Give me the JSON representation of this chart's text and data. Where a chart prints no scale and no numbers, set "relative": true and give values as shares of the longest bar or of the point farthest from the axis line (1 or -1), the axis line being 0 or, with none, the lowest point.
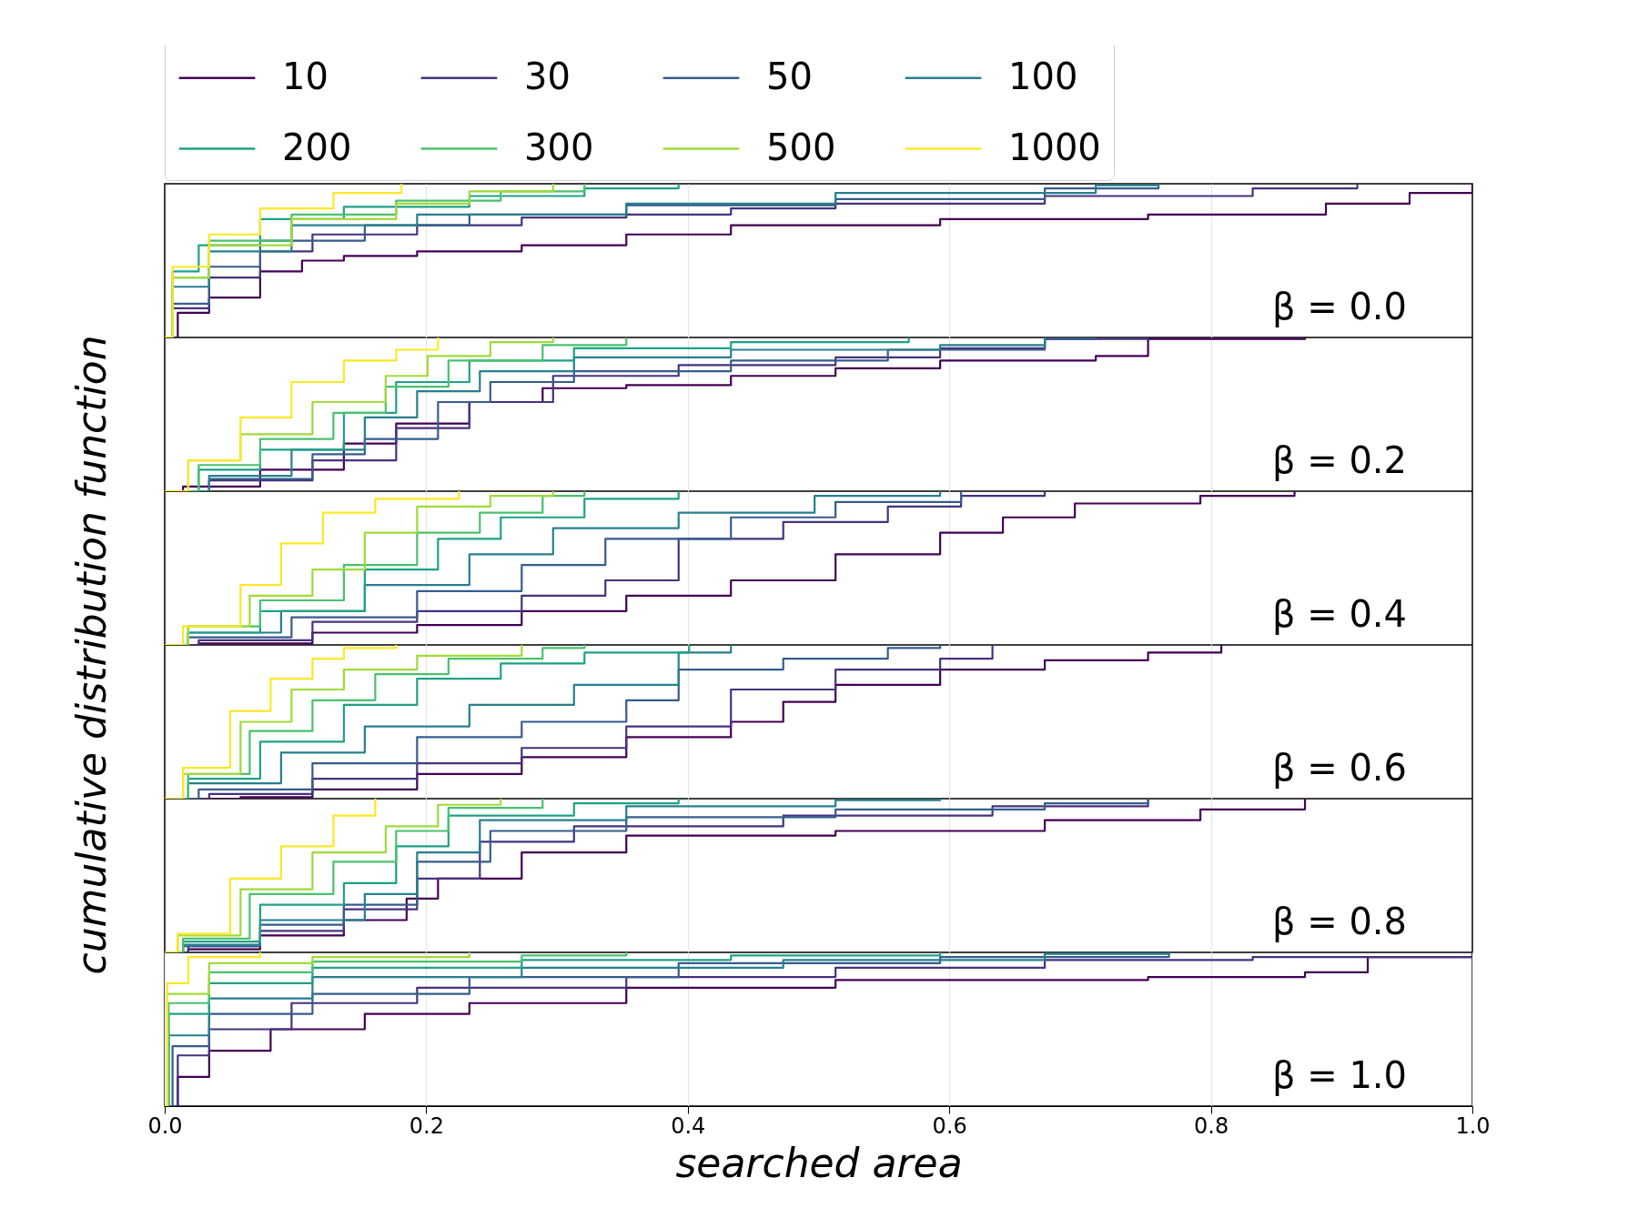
{
  "chart_data": [
    {
      "type": "step",
      "relative": true,
      "ylabel": "cumulative distribution function",
      "legend": "top",
      "grid": "x",
      "tick_labels": false,
      "xlim": [
        0,
        1
      ],
      "xticks": [
        0.2,
        0.4,
        0.6,
        0.8
      ],
      "annotations": [
        "β = 0.0"
      ],
      "series": [
        {
          "name": "10",
          "color": "#440154",
          "x": [
            0,
            0.01,
            0.034,
            0.073,
            0.105,
            0.137,
            0.193,
            0.273,
            0.353,
            0.433,
            0.593,
            0.752,
            0.888,
            0.952,
            1.0
          ],
          "values": [
            0,
            0.16,
            0.26,
            0.43,
            0.5,
            0.53,
            0.56,
            0.6,
            0.67,
            0.73,
            0.77,
            0.8,
            0.87,
            0.94,
            1
          ]
        },
        {
          "name": "30",
          "color": "#46327e",
          "x": [
            0,
            0.006,
            0.034,
            0.073,
            0.113,
            0.193,
            0.273,
            0.353,
            0.433,
            0.513,
            0.673,
            0.832,
            0.912
          ],
          "values": [
            0,
            0.19,
            0.39,
            0.56,
            0.67,
            0.73,
            0.78,
            0.8,
            0.84,
            0.87,
            0.92,
            0.97,
            1
          ]
        },
        {
          "name": "50",
          "color": "#365c8d",
          "x": [
            0,
            0.006,
            0.034,
            0.073,
            0.153,
            0.233,
            0.353,
            0.513,
            0.673,
            0.76
          ],
          "values": [
            0,
            0.22,
            0.46,
            0.63,
            0.73,
            0.8,
            0.86,
            0.9,
            0.97,
            1
          ]
        },
        {
          "name": "100",
          "color": "#277f8e",
          "x": [
            0,
            0.006,
            0.034,
            0.097,
            0.193,
            0.353,
            0.513,
            0.712,
            0.76
          ],
          "values": [
            0,
            0.33,
            0.56,
            0.73,
            0.8,
            0.87,
            0.94,
            0.99,
            1
          ]
        },
        {
          "name": "200",
          "color": "#1fa187",
          "x": [
            0,
            0.006,
            0.026,
            0.073,
            0.137,
            0.233,
            0.321,
            0.393
          ],
          "values": [
            0,
            0.43,
            0.6,
            0.77,
            0.85,
            0.92,
            0.97,
            1
          ]
        },
        {
          "name": "300",
          "color": "#4ac16d",
          "x": [
            0,
            0.006,
            0.034,
            0.097,
            0.177,
            0.257,
            0.321
          ],
          "values": [
            0,
            0.39,
            0.63,
            0.8,
            0.89,
            0.95,
            1
          ]
        },
        {
          "name": "500",
          "color": "#a0da39",
          "x": [
            0,
            0.006,
            0.034,
            0.097,
            0.177,
            0.233,
            0.297
          ],
          "values": [
            0,
            0.39,
            0.6,
            0.77,
            0.87,
            0.95,
            1
          ]
        },
        {
          "name": "1000",
          "color": "#fde725",
          "x": [
            0,
            0.006,
            0.034,
            0.073,
            0.129,
            0.181
          ],
          "values": [
            0,
            0.46,
            0.67,
            0.84,
            0.94,
            1
          ]
        }
      ]
    },
    {
      "type": "step",
      "relative": true,
      "grid": "x",
      "tick_labels": false,
      "xlim": [
        0,
        1
      ],
      "xticks": [
        0.2,
        0.4,
        0.6,
        0.8
      ],
      "annotations": [
        "β = 0.2"
      ],
      "series": [
        {
          "color": "#440154",
          "x": [
            0,
            0.014,
            0.073,
            0.137,
            0.177,
            0.233,
            0.289,
            0.353,
            0.433,
            0.513,
            0.593,
            0.712,
            0.752,
            0.872
          ],
          "values": [
            0,
            0.03,
            0.14,
            0.31,
            0.44,
            0.58,
            0.67,
            0.69,
            0.75,
            0.8,
            0.85,
            0.88,
            0.99,
            1
          ]
        },
        {
          "color": "#46327e",
          "x": [
            0,
            0.034,
            0.113,
            0.177,
            0.233,
            0.297,
            0.393,
            0.513,
            0.593,
            0.673,
            0.752
          ],
          "values": [
            0,
            0.07,
            0.2,
            0.41,
            0.58,
            0.75,
            0.82,
            0.87,
            0.93,
            0.99,
            1
          ]
        },
        {
          "color": "#365c8d",
          "x": [
            0,
            0.034,
            0.113,
            0.153,
            0.209,
            0.249,
            0.313,
            0.433,
            0.553,
            0.673,
            0.712
          ],
          "values": [
            0,
            0.08,
            0.24,
            0.34,
            0.58,
            0.71,
            0.78,
            0.85,
            0.92,
            0.99,
            1
          ]
        },
        {
          "color": "#277f8e",
          "x": [
            0,
            0.034,
            0.097,
            0.153,
            0.193,
            0.241,
            0.313,
            0.433,
            0.593,
            0.673
          ],
          "values": [
            0,
            0.1,
            0.27,
            0.48,
            0.65,
            0.78,
            0.87,
            0.92,
            0.95,
            1
          ]
        },
        {
          "color": "#1fa187",
          "x": [
            0,
            0.026,
            0.073,
            0.137,
            0.177,
            0.233,
            0.313,
            0.433,
            0.569
          ],
          "values": [
            0,
            0.14,
            0.27,
            0.51,
            0.71,
            0.85,
            0.93,
            0.97,
            1
          ]
        },
        {
          "color": "#4ac16d",
          "x": [
            0,
            0.026,
            0.073,
            0.129,
            0.169,
            0.217,
            0.289,
            0.353
          ],
          "values": [
            0,
            0.17,
            0.34,
            0.51,
            0.68,
            0.85,
            0.95,
            1
          ]
        },
        {
          "color": "#a0da39",
          "x": [
            0,
            0.018,
            0.058,
            0.113,
            0.169,
            0.201,
            0.249,
            0.297
          ],
          "values": [
            0,
            0.2,
            0.37,
            0.58,
            0.75,
            0.88,
            0.97,
            1
          ]
        },
        {
          "color": "#fde725",
          "x": [
            0,
            0.018,
            0.058,
            0.097,
            0.137,
            0.177,
            0.209
          ],
          "values": [
            0,
            0.2,
            0.48,
            0.71,
            0.85,
            0.92,
            1
          ]
        }
      ]
    },
    {
      "type": "step",
      "relative": true,
      "grid": "x",
      "tick_labels": false,
      "xlim": [
        0,
        1
      ],
      "xticks": [
        0.2,
        0.4,
        0.6,
        0.8
      ],
      "annotations": [
        "β = 0.4"
      ],
      "series": [
        {
          "color": "#440154",
          "x": [
            0,
            0.026,
            0.113,
            0.193,
            0.273,
            0.353,
            0.433,
            0.513,
            0.593,
            0.641,
            0.696,
            0.792,
            0.864
          ],
          "values": [
            0,
            0.01,
            0.08,
            0.13,
            0.22,
            0.32,
            0.42,
            0.59,
            0.73,
            0.83,
            0.92,
            0.97,
            1
          ]
        },
        {
          "color": "#46327e",
          "x": [
            0,
            0.026,
            0.113,
            0.193,
            0.273,
            0.337,
            0.393,
            0.473,
            0.553,
            0.609,
            0.673
          ],
          "values": [
            0,
            0.03,
            0.15,
            0.22,
            0.32,
            0.42,
            0.69,
            0.8,
            0.9,
            0.97,
            1
          ]
        },
        {
          "color": "#365c8d",
          "x": [
            0,
            0.018,
            0.097,
            0.193,
            0.273,
            0.337,
            0.433,
            0.513,
            0.609
          ],
          "values": [
            0,
            0.05,
            0.18,
            0.35,
            0.52,
            0.69,
            0.83,
            0.93,
            1
          ]
        },
        {
          "color": "#277f8e",
          "x": [
            0,
            0.018,
            0.089,
            0.153,
            0.233,
            0.297,
            0.393,
            0.497,
            0.593
          ],
          "values": [
            0,
            0.08,
            0.22,
            0.39,
            0.59,
            0.76,
            0.86,
            0.97,
            1
          ]
        },
        {
          "color": "#1fa187",
          "x": [
            0,
            0.018,
            0.073,
            0.153,
            0.209,
            0.257,
            0.321,
            0.393
          ],
          "values": [
            0,
            0.08,
            0.22,
            0.49,
            0.69,
            0.83,
            0.95,
            1
          ]
        },
        {
          "color": "#4ac16d",
          "x": [
            0,
            0.018,
            0.073,
            0.137,
            0.193,
            0.241,
            0.289,
            0.321
          ],
          "values": [
            0,
            0.12,
            0.29,
            0.52,
            0.73,
            0.86,
            0.97,
            1
          ]
        },
        {
          "color": "#a0da39",
          "x": [
            0,
            0.018,
            0.065,
            0.113,
            0.153,
            0.193,
            0.249,
            0.297
          ],
          "values": [
            0,
            0.12,
            0.32,
            0.49,
            0.73,
            0.9,
            0.97,
            1
          ]
        },
        {
          "color": "#fde725",
          "x": [
            0,
            0.014,
            0.058,
            0.089,
            0.121,
            0.161,
            0.225
          ],
          "values": [
            0,
            0.12,
            0.39,
            0.66,
            0.86,
            0.95,
            1
          ]
        }
      ]
    },
    {
      "type": "step",
      "relative": true,
      "grid": "x",
      "tick_labels": false,
      "xlim": [
        0,
        1
      ],
      "xticks": [
        0.2,
        0.4,
        0.6,
        0.8
      ],
      "annotations": [
        "β = 0.6"
      ],
      "series": [
        {
          "color": "#440154",
          "x": [
            0,
            0.058,
            0.113,
            0.193,
            0.273,
            0.353,
            0.433,
            0.473,
            0.513,
            0.593,
            0.673,
            0.752,
            0.808
          ],
          "values": [
            0,
            0.01,
            0.06,
            0.16,
            0.27,
            0.4,
            0.5,
            0.63,
            0.74,
            0.84,
            0.9,
            0.95,
            1
          ]
        },
        {
          "color": "#46327e",
          "x": [
            0,
            0.034,
            0.113,
            0.193,
            0.273,
            0.353,
            0.433,
            0.513,
            0.593,
            0.633
          ],
          "values": [
            0,
            0.03,
            0.13,
            0.23,
            0.33,
            0.47,
            0.71,
            0.84,
            0.91,
            1
          ]
        },
        {
          "color": "#365c8d",
          "x": [
            0,
            0.026,
            0.113,
            0.193,
            0.273,
            0.353,
            0.393,
            0.473,
            0.553,
            0.593
          ],
          "values": [
            0,
            0.06,
            0.23,
            0.4,
            0.5,
            0.64,
            0.84,
            0.91,
            0.98,
            1
          ]
        },
        {
          "color": "#277f8e",
          "x": [
            0,
            0.018,
            0.089,
            0.153,
            0.233,
            0.313,
            0.393,
            0.433
          ],
          "values": [
            0,
            0.1,
            0.3,
            0.47,
            0.61,
            0.74,
            0.95,
            1
          ]
        },
        {
          "color": "#1fa187",
          "x": [
            0,
            0.018,
            0.073,
            0.137,
            0.193,
            0.257,
            0.321,
            0.401
          ],
          "values": [
            0,
            0.13,
            0.37,
            0.61,
            0.78,
            0.88,
            0.95,
            1
          ]
        },
        {
          "color": "#4ac16d",
          "x": [
            0,
            0.018,
            0.065,
            0.113,
            0.161,
            0.217,
            0.289,
            0.321
          ],
          "values": [
            0,
            0.16,
            0.44,
            0.64,
            0.81,
            0.91,
            0.98,
            1
          ]
        },
        {
          "color": "#a0da39",
          "x": [
            0,
            0.014,
            0.058,
            0.097,
            0.137,
            0.193,
            0.273
          ],
          "values": [
            0,
            0.16,
            0.5,
            0.71,
            0.84,
            0.93,
            1
          ]
        },
        {
          "color": "#fde725",
          "x": [
            0,
            0.014,
            0.05,
            0.081,
            0.113,
            0.137,
            0.177
          ],
          "values": [
            0,
            0.2,
            0.57,
            0.78,
            0.91,
            0.98,
            1
          ]
        }
      ]
    },
    {
      "type": "step",
      "relative": true,
      "grid": "x",
      "tick_labels": false,
      "xlim": [
        0,
        1
      ],
      "xticks": [
        0.2,
        0.4,
        0.6,
        0.8
      ],
      "annotations": [
        "β = 0.8"
      ],
      "series": [
        {
          "color": "#440154",
          "x": [
            0,
            0.018,
            0.073,
            0.137,
            0.185,
            0.209,
            0.273,
            0.353,
            0.513,
            0.673,
            0.792,
            0.872
          ],
          "values": [
            0,
            0.02,
            0.11,
            0.21,
            0.35,
            0.48,
            0.65,
            0.76,
            0.79,
            0.86,
            0.93,
            1
          ]
        },
        {
          "color": "#46327e",
          "x": [
            0,
            0.018,
            0.073,
            0.137,
            0.193,
            0.241,
            0.313,
            0.473,
            0.633,
            0.752
          ],
          "values": [
            0,
            0.04,
            0.14,
            0.28,
            0.48,
            0.72,
            0.82,
            0.89,
            0.95,
            1
          ]
        },
        {
          "color": "#365c8d",
          "x": [
            0,
            0.014,
            0.073,
            0.137,
            0.193,
            0.249,
            0.353,
            0.513,
            0.673,
            0.752
          ],
          "values": [
            0,
            0.04,
            0.18,
            0.31,
            0.59,
            0.79,
            0.88,
            0.93,
            0.97,
            1
          ]
        },
        {
          "color": "#277f8e",
          "x": [
            0,
            0.014,
            0.073,
            0.153,
            0.193,
            0.241,
            0.353,
            0.513,
            0.593
          ],
          "values": [
            0,
            0.05,
            0.21,
            0.38,
            0.65,
            0.86,
            0.95,
            0.99,
            1
          ]
        },
        {
          "color": "#1fa187",
          "x": [
            0,
            0.014,
            0.073,
            0.137,
            0.177,
            0.217,
            0.313,
            0.393
          ],
          "values": [
            0,
            0.07,
            0.31,
            0.45,
            0.69,
            0.89,
            0.97,
            1
          ]
        },
        {
          "color": "#4ac16d",
          "x": [
            0,
            0.014,
            0.065,
            0.129,
            0.177,
            0.217,
            0.289
          ],
          "values": [
            0,
            0.09,
            0.38,
            0.59,
            0.79,
            0.94,
            1
          ]
        },
        {
          "color": "#a0da39",
          "x": [
            0,
            0.01,
            0.058,
            0.113,
            0.169,
            0.209,
            0.257
          ],
          "values": [
            0,
            0.11,
            0.41,
            0.65,
            0.82,
            0.96,
            1
          ]
        },
        {
          "color": "#fde725",
          "x": [
            0,
            0.01,
            0.05,
            0.089,
            0.129,
            0.161
          ],
          "values": [
            0,
            0.12,
            0.48,
            0.69,
            0.89,
            1
          ]
        }
      ]
    },
    {
      "type": "step",
      "relative": true,
      "xlabel": "searched area",
      "grid": "x",
      "tick_labels": "x",
      "xlim": [
        0,
        1
      ],
      "xticks": [
        {
          "value": 0,
          "label": "0.0"
        },
        0.2,
        0.4,
        0.6,
        0.8,
        {
          "value": 1,
          "label": "1.0"
        }
      ],
      "annotations": [
        "β = 1.0"
      ],
      "series": [
        {
          "color": "#440154",
          "x": [
            0,
            0.01,
            0.034,
            0.081,
            0.153,
            0.233,
            0.353,
            0.513,
            0.752,
            0.872,
            0.92,
            1.0
          ],
          "values": [
            0,
            0.19,
            0.36,
            0.5,
            0.6,
            0.67,
            0.77,
            0.82,
            0.84,
            0.87,
            0.97,
            1
          ]
        },
        {
          "color": "#46327e",
          "x": [
            0,
            0.01,
            0.034,
            0.097,
            0.193,
            0.353,
            0.513,
            0.673,
            0.832,
            1.0
          ],
          "values": [
            0,
            0.33,
            0.5,
            0.67,
            0.77,
            0.84,
            0.9,
            0.95,
            0.97,
            1
          ]
        },
        {
          "color": "#365c8d",
          "x": [
            0,
            0.006,
            0.034,
            0.113,
            0.233,
            0.393,
            0.593,
            0.768
          ],
          "values": [
            0,
            0.39,
            0.6,
            0.73,
            0.84,
            0.93,
            0.97,
            1
          ]
        },
        {
          "color": "#277f8e",
          "x": [
            0,
            0.003,
            0.034,
            0.113,
            0.273,
            0.473,
            0.673,
            0.768
          ],
          "values": [
            0,
            0.46,
            0.7,
            0.84,
            0.9,
            0.95,
            0.99,
            1
          ]
        },
        {
          "color": "#1fa187",
          "x": [
            0,
            0.003,
            0.034,
            0.113,
            0.273,
            0.433,
            0.593
          ],
          "values": [
            0,
            0.6,
            0.8,
            0.9,
            0.95,
            0.98,
            1
          ]
        },
        {
          "color": "#4ac16d",
          "x": [
            0,
            0.003,
            0.034,
            0.113,
            0.273,
            0.353
          ],
          "values": [
            0,
            0.67,
            0.87,
            0.94,
            0.98,
            1
          ]
        },
        {
          "color": "#a0da39",
          "x": [
            0,
            0.002,
            0.034,
            0.113,
            0.233
          ],
          "values": [
            0,
            0.73,
            0.93,
            0.97,
            1
          ]
        },
        {
          "color": "#fde725",
          "x": [
            0,
            0.002,
            0.018,
            0.073
          ],
          "values": [
            0,
            0.8,
            0.97,
            1
          ]
        }
      ]
    }
  ]
}
